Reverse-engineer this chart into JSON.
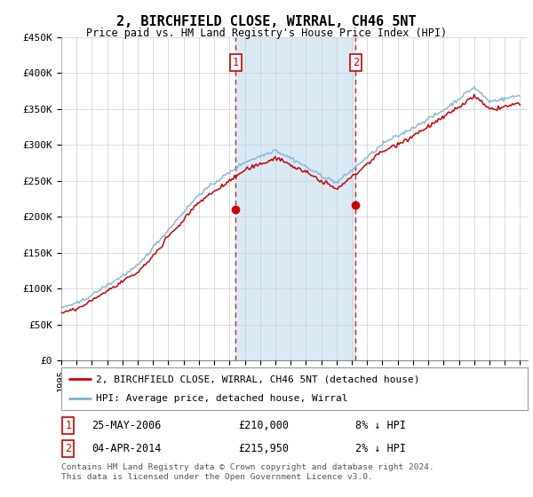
{
  "title": "2, BIRCHFIELD CLOSE, WIRRAL, CH46 5NT",
  "subtitle": "Price paid vs. HM Land Registry's House Price Index (HPI)",
  "ylabel_ticks": [
    "£0",
    "£50K",
    "£100K",
    "£150K",
    "£200K",
    "£250K",
    "£300K",
    "£350K",
    "£400K",
    "£450K"
  ],
  "ylim": [
    0,
    450000
  ],
  "xlim_start": 1995.0,
  "xlim_end": 2025.5,
  "sale1_x": 2006.4,
  "sale1_y": 210000,
  "sale1_label": "25-MAY-2006",
  "sale1_price": "£210,000",
  "sale1_hpi": "8% ↓ HPI",
  "sale2_x": 2014.25,
  "sale2_y": 215950,
  "sale2_label": "04-APR-2014",
  "sale2_price": "£215,950",
  "sale2_hpi": "2% ↓ HPI",
  "hpi_color": "#7ab4d8",
  "property_color": "#cc0000",
  "shade_color": "#daeaf5",
  "grid_color": "#cccccc",
  "background_color": "#ffffff",
  "legend_property": "2, BIRCHFIELD CLOSE, WIRRAL, CH46 5NT (detached house)",
  "legend_hpi": "HPI: Average price, detached house, Wirral",
  "footnote": "Contains HM Land Registry data © Crown copyright and database right 2024.\nThis data is licensed under the Open Government Licence v3.0."
}
